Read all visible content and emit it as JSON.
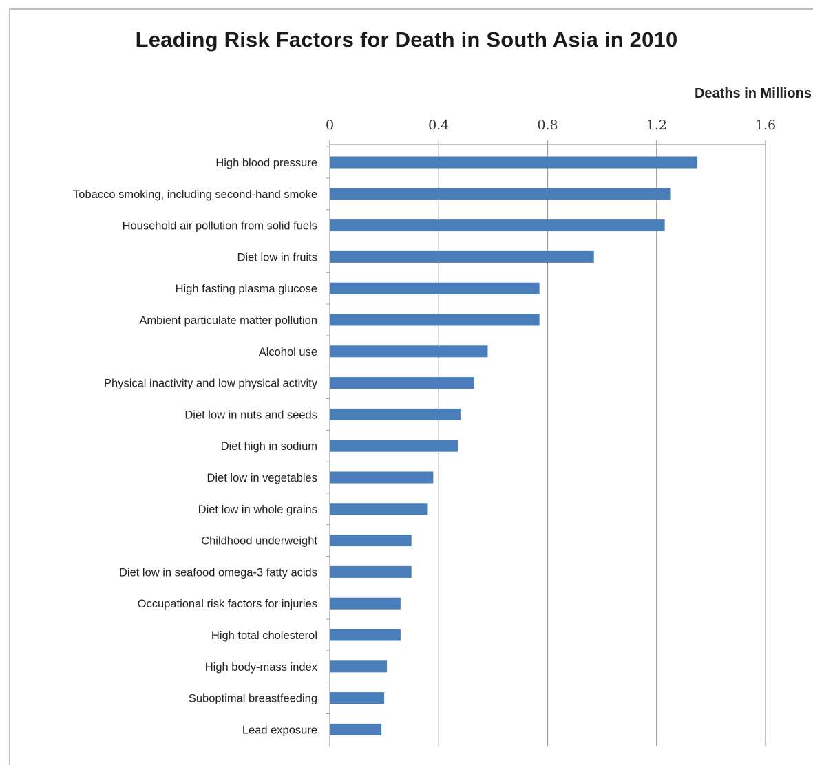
{
  "chart_data": {
    "type": "bar",
    "orientation": "horizontal",
    "title": "Leading Risk Factors for Death in South Asia in 2010",
    "xlabel": "Deaths in Millions",
    "ylabel": "",
    "xlim": [
      0,
      1.6
    ],
    "xticks": [
      "0",
      "0.4",
      "0.8",
      "1.2",
      "1.6"
    ],
    "xtick_values": [
      0,
      0.4,
      0.8,
      1.2,
      1.6
    ],
    "x_axis_position": "top",
    "grid": true,
    "legend": "none",
    "bar_color": "#4a7ebb",
    "categories": [
      "High blood pressure",
      "Tobacco smoking, including second-hand smoke",
      "Household air pollution from solid fuels",
      "Diet low in fruits",
      "High fasting plasma glucose",
      "Ambient particulate matter pollution",
      "Alcohol use",
      "Physical inactivity and low physical activity",
      "Diet low in nuts and seeds",
      "Diet high in sodium",
      "Diet low in vegetables",
      "Diet low in whole grains",
      "Childhood underweight",
      "Diet low in seafood omega-3 fatty acids",
      "Occupational risk factors for injuries",
      "High total cholesterol",
      "High body-mass index",
      "Suboptimal breastfeeding",
      "Lead exposure"
    ],
    "values": [
      1.35,
      1.25,
      1.23,
      0.97,
      0.77,
      0.77,
      0.58,
      0.53,
      0.48,
      0.47,
      0.38,
      0.36,
      0.3,
      0.3,
      0.26,
      0.26,
      0.21,
      0.2,
      0.19
    ]
  }
}
